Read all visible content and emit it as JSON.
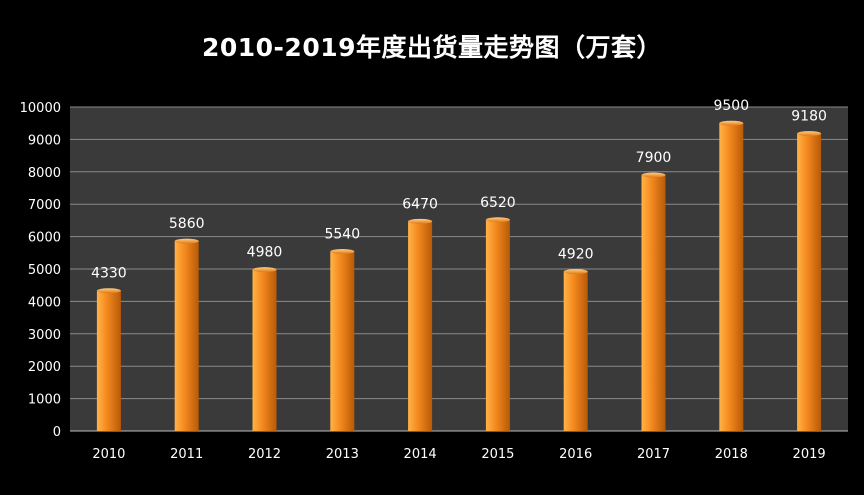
{
  "chart_data": {
    "type": "bar",
    "title": "2010-2019年度出货量走势图（万套）",
    "categories": [
      "2010",
      "2011",
      "2012",
      "2013",
      "2014",
      "2015",
      "2016",
      "2017",
      "2018",
      "2019"
    ],
    "values": [
      4330,
      5860,
      4980,
      5540,
      6470,
      6520,
      4920,
      7900,
      9500,
      9180
    ],
    "ylim": [
      0,
      10000
    ],
    "yticks": [
      0,
      1000,
      2000,
      3000,
      4000,
      5000,
      6000,
      7000,
      8000,
      9000,
      10000
    ],
    "grid": true,
    "legend": "none",
    "colors": {
      "background": "#000000",
      "plot_area": "#3a3a3a",
      "gridline": "#8a8a8a",
      "bar_light": "#ffb347",
      "bar_mid": "#f58a1f",
      "bar_dark": "#b85a08",
      "text": "#ffffff"
    }
  }
}
